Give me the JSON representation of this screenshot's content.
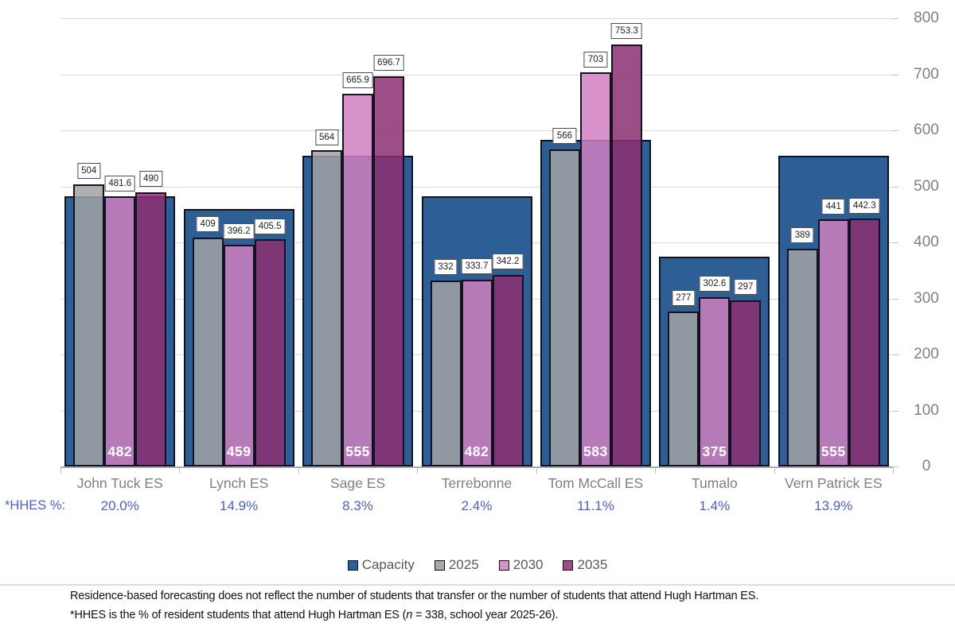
{
  "chart_data": {
    "type": "bar",
    "title": "",
    "categories": [
      "John Tuck ES",
      "Lynch ES",
      "Sage ES",
      "Terrebonne",
      "Tom McCall ES",
      "Tumalo",
      "Vern Patrick ES"
    ],
    "series": [
      {
        "name": "Capacity",
        "legend_color": "#2d5f96",
        "fill": "#2d5f96",
        "values": [
          482,
          459,
          555,
          482,
          583,
          375,
          555
        ]
      },
      {
        "name": "2025",
        "legend_color": "#a8a8aa",
        "fill": "rgba(162,162,164,0.85)",
        "values": [
          504,
          409,
          564,
          332,
          566,
          277,
          389
        ]
      },
      {
        "name": "2030",
        "legend_color": "#d792c8",
        "fill": "rgba(207,127,192,0.85)",
        "values": [
          481.6,
          396.2,
          665.9,
          333.7,
          703,
          302.6,
          441
        ]
      },
      {
        "name": "2035",
        "legend_color": "#9d4d87",
        "fill": "rgba(141,47,114,0.85)",
        "values": [
          490,
          405.5,
          696.7,
          342.2,
          753.3,
          297,
          442.3
        ]
      }
    ],
    "ylim": [
      0,
      800
    ],
    "yticks": [
      "0",
      "100",
      "200",
      "300",
      "400",
      "500",
      "600",
      "700",
      "800"
    ],
    "grid": true,
    "legend_position": "bottom",
    "hhes_row": {
      "label": "*HHES %:",
      "values": [
        "20.0%",
        "14.9%",
        "8.3%",
        "2.4%",
        "11.1%",
        "1.4%",
        "13.9%"
      ],
      "text_color": "#4a60cd"
    }
  },
  "colors": {
    "axis_label_text": "#7f7f7f",
    "category_text": "#7f7f7f",
    "legend_text": "#595959",
    "gridline": "#d9d9d9",
    "capacity_blue": "#2d5f96",
    "series_2025_gray": "#a8a8aa",
    "series_2030_pink": "#d792c8",
    "series_2035_purple": "#9d4d87",
    "hhes_blue": "#4a60cd"
  },
  "footnote": {
    "line1": "Residence-based forecasting does not reflect the number of students that transfer or the number of students that attend Hugh Hartman ES.",
    "line2_pre": "*HHES is the % of resident students that attend Hugh Hartman ES (",
    "line2_italic": "n",
    "line2_post": " = 338, school year 2025-26)."
  }
}
